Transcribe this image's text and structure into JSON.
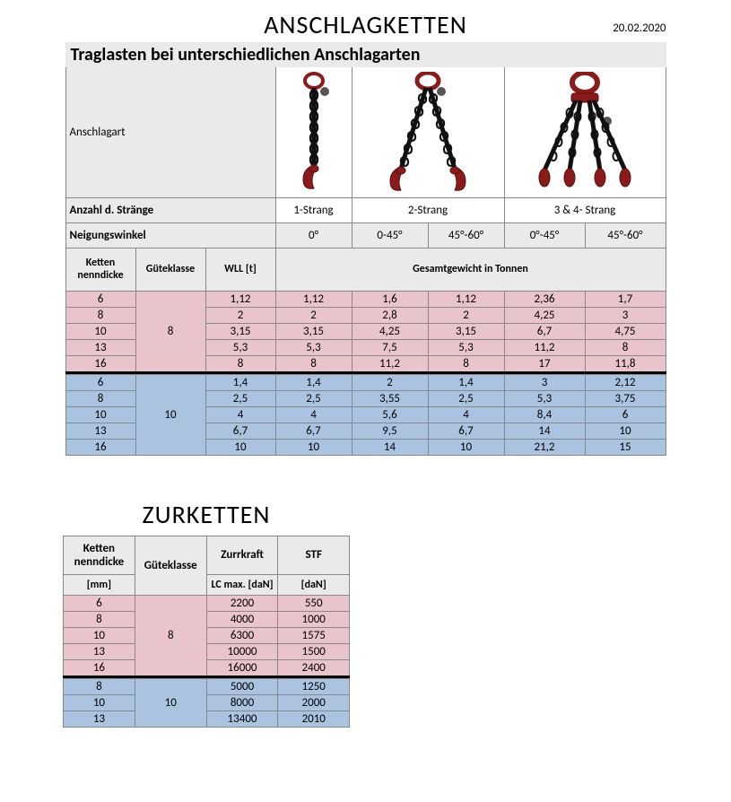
{
  "doc": {
    "title1": "ANSCHLAGKETTEN",
    "date": "20.02.2020",
    "subtitle": "Traglasten bei unterschiedlichen Anschlagarten",
    "row_anschlagart_label": "Anschlagart",
    "row_strand_label": "Anzahl d. Stränge",
    "strand_1": "1-Strang",
    "strand_2": "2-Strang",
    "strand_34": "3 & 4- Strang",
    "row_angle_label": "Neigungswinkel",
    "angle_0": "0°",
    "angle_045": "0-45°",
    "angle_4560": "45°-60°",
    "angle_045b": "0°-45°",
    "angle_4560b": "45°-60°",
    "col_kd": "Ketten nenndicke",
    "col_gk": "Güteklasse",
    "col_wll": "WLL [t]",
    "col_total": "Gesamtgewicht in Tonnen",
    "gk8": "8",
    "gk10": "10",
    "rows8": [
      {
        "kd": "6",
        "wll": "1,12",
        "s1": "1,12",
        "s2a": "1,6",
        "s2b": "1,12",
        "s3a": "2,36",
        "s3b": "1,7"
      },
      {
        "kd": "8",
        "wll": "2",
        "s1": "2",
        "s2a": "2,8",
        "s2b": "2",
        "s3a": "4,25",
        "s3b": "3"
      },
      {
        "kd": "10",
        "wll": "3,15",
        "s1": "3,15",
        "s2a": "4,25",
        "s2b": "3,15",
        "s3a": "6,7",
        "s3b": "4,75"
      },
      {
        "kd": "13",
        "wll": "5,3",
        "s1": "5,3",
        "s2a": "7,5",
        "s2b": "5,3",
        "s3a": "11,2",
        "s3b": "8"
      },
      {
        "kd": "16",
        "wll": "8",
        "s1": "8",
        "s2a": "11,2",
        "s2b": "8",
        "s3a": "17",
        "s3b": "11,8"
      }
    ],
    "rows10": [
      {
        "kd": "6",
        "wll": "1,4",
        "s1": "1,4",
        "s2a": "2",
        "s2b": "1,4",
        "s3a": "3",
        "s3b": "2,12"
      },
      {
        "kd": "8",
        "wll": "2,5",
        "s1": "2,5",
        "s2a": "3,55",
        "s2b": "2,5",
        "s3a": "5,3",
        "s3b": "3,75"
      },
      {
        "kd": "10",
        "wll": "4",
        "s1": "4",
        "s2a": "5,6",
        "s2b": "4",
        "s3a": "8,4",
        "s3b": "6"
      },
      {
        "kd": "13",
        "wll": "6,7",
        "s1": "6,7",
        "s2a": "9,5",
        "s2b": "6,7",
        "s3a": "14",
        "s3b": "10"
      },
      {
        "kd": "16",
        "wll": "10",
        "s1": "10",
        "s2a": "14",
        "s2b": "10",
        "s3a": "21,2",
        "s3b": "15"
      }
    ],
    "title2": "ZURKETTEN",
    "t2_col_kd": "Ketten nenndicke",
    "t2_col_gk": "Güteklasse",
    "t2_col_zurr": "Zurrkraft",
    "t2_col_stf": "STF",
    "t2_col_mm": "[mm]",
    "t2_col_lc": "LC max. [daN]",
    "t2_col_dan": "[daN]",
    "t2_rows8": [
      {
        "kd": "6",
        "lc": "2200",
        "stf": "550"
      },
      {
        "kd": "8",
        "lc": "4000",
        "stf": "1000"
      },
      {
        "kd": "10",
        "lc": "6300",
        "stf": "1575"
      },
      {
        "kd": "13",
        "lc": "10000",
        "stf": "1500"
      },
      {
        "kd": "16",
        "lc": "16000",
        "stf": "2400"
      }
    ],
    "t2_rows10": [
      {
        "kd": "8",
        "lc": "5000",
        "stf": "1250"
      },
      {
        "kd": "10",
        "lc": "8000",
        "stf": "2000"
      },
      {
        "kd": "13",
        "lc": "13400",
        "stf": "2010"
      }
    ],
    "colors": {
      "pink": "#e9c5cb",
      "blue": "#a9c3e0",
      "header_grey": "#eaeaea",
      "border": "#888888",
      "chain_red": "#8b1a1a",
      "chain_black": "#111111"
    }
  }
}
